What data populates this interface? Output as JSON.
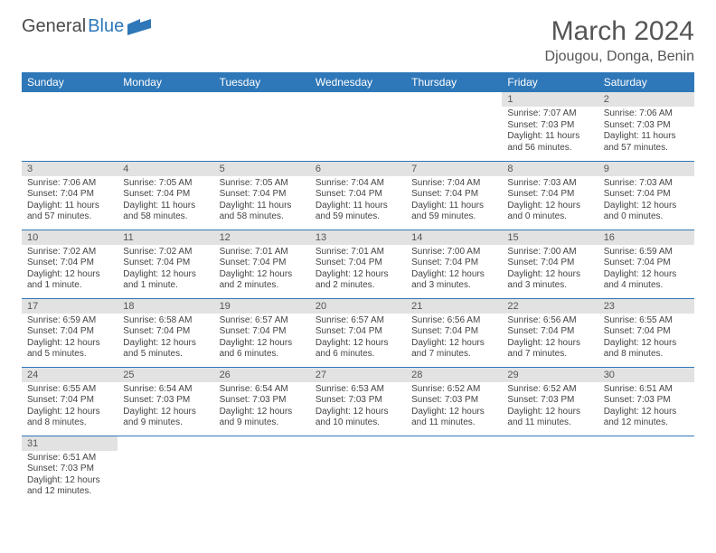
{
  "brand": {
    "name_part1": "General",
    "name_part2": "Blue"
  },
  "title": "March 2024",
  "location": "Djougou, Donga, Benin",
  "colors": {
    "header_bg": "#2e77b8",
    "header_text": "#ffffff",
    "daynum_bg": "#e2e2e2",
    "row_divider": "#2e77b8",
    "body_text": "#444444",
    "title_text": "#555555"
  },
  "weekdays": [
    "Sunday",
    "Monday",
    "Tuesday",
    "Wednesday",
    "Thursday",
    "Friday",
    "Saturday"
  ],
  "weeks": [
    [
      null,
      null,
      null,
      null,
      null,
      {
        "n": "1",
        "sunrise": "Sunrise: 7:07 AM",
        "sunset": "Sunset: 7:03 PM",
        "daylight": "Daylight: 11 hours and 56 minutes."
      },
      {
        "n": "2",
        "sunrise": "Sunrise: 7:06 AM",
        "sunset": "Sunset: 7:03 PM",
        "daylight": "Daylight: 11 hours and 57 minutes."
      }
    ],
    [
      {
        "n": "3",
        "sunrise": "Sunrise: 7:06 AM",
        "sunset": "Sunset: 7:04 PM",
        "daylight": "Daylight: 11 hours and 57 minutes."
      },
      {
        "n": "4",
        "sunrise": "Sunrise: 7:05 AM",
        "sunset": "Sunset: 7:04 PM",
        "daylight": "Daylight: 11 hours and 58 minutes."
      },
      {
        "n": "5",
        "sunrise": "Sunrise: 7:05 AM",
        "sunset": "Sunset: 7:04 PM",
        "daylight": "Daylight: 11 hours and 58 minutes."
      },
      {
        "n": "6",
        "sunrise": "Sunrise: 7:04 AM",
        "sunset": "Sunset: 7:04 PM",
        "daylight": "Daylight: 11 hours and 59 minutes."
      },
      {
        "n": "7",
        "sunrise": "Sunrise: 7:04 AM",
        "sunset": "Sunset: 7:04 PM",
        "daylight": "Daylight: 11 hours and 59 minutes."
      },
      {
        "n": "8",
        "sunrise": "Sunrise: 7:03 AM",
        "sunset": "Sunset: 7:04 PM",
        "daylight": "Daylight: 12 hours and 0 minutes."
      },
      {
        "n": "9",
        "sunrise": "Sunrise: 7:03 AM",
        "sunset": "Sunset: 7:04 PM",
        "daylight": "Daylight: 12 hours and 0 minutes."
      }
    ],
    [
      {
        "n": "10",
        "sunrise": "Sunrise: 7:02 AM",
        "sunset": "Sunset: 7:04 PM",
        "daylight": "Daylight: 12 hours and 1 minute."
      },
      {
        "n": "11",
        "sunrise": "Sunrise: 7:02 AM",
        "sunset": "Sunset: 7:04 PM",
        "daylight": "Daylight: 12 hours and 1 minute."
      },
      {
        "n": "12",
        "sunrise": "Sunrise: 7:01 AM",
        "sunset": "Sunset: 7:04 PM",
        "daylight": "Daylight: 12 hours and 2 minutes."
      },
      {
        "n": "13",
        "sunrise": "Sunrise: 7:01 AM",
        "sunset": "Sunset: 7:04 PM",
        "daylight": "Daylight: 12 hours and 2 minutes."
      },
      {
        "n": "14",
        "sunrise": "Sunrise: 7:00 AM",
        "sunset": "Sunset: 7:04 PM",
        "daylight": "Daylight: 12 hours and 3 minutes."
      },
      {
        "n": "15",
        "sunrise": "Sunrise: 7:00 AM",
        "sunset": "Sunset: 7:04 PM",
        "daylight": "Daylight: 12 hours and 3 minutes."
      },
      {
        "n": "16",
        "sunrise": "Sunrise: 6:59 AM",
        "sunset": "Sunset: 7:04 PM",
        "daylight": "Daylight: 12 hours and 4 minutes."
      }
    ],
    [
      {
        "n": "17",
        "sunrise": "Sunrise: 6:59 AM",
        "sunset": "Sunset: 7:04 PM",
        "daylight": "Daylight: 12 hours and 5 minutes."
      },
      {
        "n": "18",
        "sunrise": "Sunrise: 6:58 AM",
        "sunset": "Sunset: 7:04 PM",
        "daylight": "Daylight: 12 hours and 5 minutes."
      },
      {
        "n": "19",
        "sunrise": "Sunrise: 6:57 AM",
        "sunset": "Sunset: 7:04 PM",
        "daylight": "Daylight: 12 hours and 6 minutes."
      },
      {
        "n": "20",
        "sunrise": "Sunrise: 6:57 AM",
        "sunset": "Sunset: 7:04 PM",
        "daylight": "Daylight: 12 hours and 6 minutes."
      },
      {
        "n": "21",
        "sunrise": "Sunrise: 6:56 AM",
        "sunset": "Sunset: 7:04 PM",
        "daylight": "Daylight: 12 hours and 7 minutes."
      },
      {
        "n": "22",
        "sunrise": "Sunrise: 6:56 AM",
        "sunset": "Sunset: 7:04 PM",
        "daylight": "Daylight: 12 hours and 7 minutes."
      },
      {
        "n": "23",
        "sunrise": "Sunrise: 6:55 AM",
        "sunset": "Sunset: 7:04 PM",
        "daylight": "Daylight: 12 hours and 8 minutes."
      }
    ],
    [
      {
        "n": "24",
        "sunrise": "Sunrise: 6:55 AM",
        "sunset": "Sunset: 7:04 PM",
        "daylight": "Daylight: 12 hours and 8 minutes."
      },
      {
        "n": "25",
        "sunrise": "Sunrise: 6:54 AM",
        "sunset": "Sunset: 7:03 PM",
        "daylight": "Daylight: 12 hours and 9 minutes."
      },
      {
        "n": "26",
        "sunrise": "Sunrise: 6:54 AM",
        "sunset": "Sunset: 7:03 PM",
        "daylight": "Daylight: 12 hours and 9 minutes."
      },
      {
        "n": "27",
        "sunrise": "Sunrise: 6:53 AM",
        "sunset": "Sunset: 7:03 PM",
        "daylight": "Daylight: 12 hours and 10 minutes."
      },
      {
        "n": "28",
        "sunrise": "Sunrise: 6:52 AM",
        "sunset": "Sunset: 7:03 PM",
        "daylight": "Daylight: 12 hours and 11 minutes."
      },
      {
        "n": "29",
        "sunrise": "Sunrise: 6:52 AM",
        "sunset": "Sunset: 7:03 PM",
        "daylight": "Daylight: 12 hours and 11 minutes."
      },
      {
        "n": "30",
        "sunrise": "Sunrise: 6:51 AM",
        "sunset": "Sunset: 7:03 PM",
        "daylight": "Daylight: 12 hours and 12 minutes."
      }
    ],
    [
      {
        "n": "31",
        "sunrise": "Sunrise: 6:51 AM",
        "sunset": "Sunset: 7:03 PM",
        "daylight": "Daylight: 12 hours and 12 minutes."
      },
      null,
      null,
      null,
      null,
      null,
      null
    ]
  ]
}
